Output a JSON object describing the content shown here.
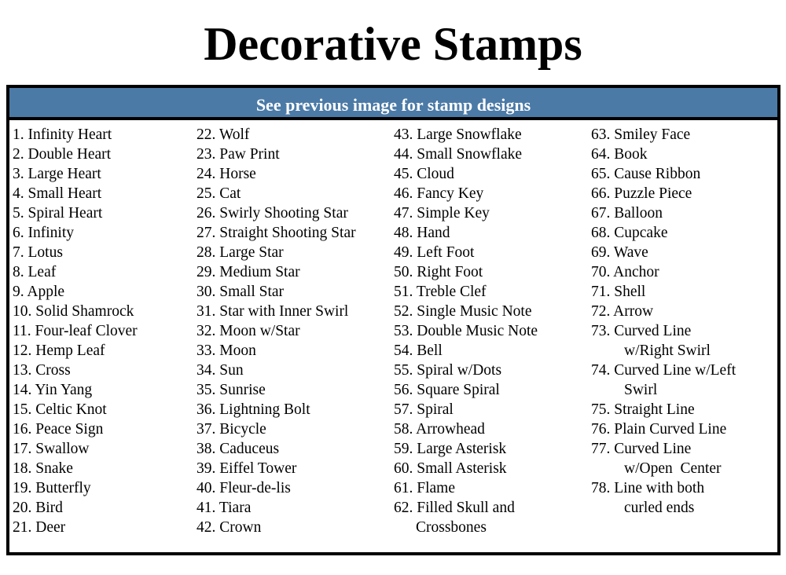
{
  "title": "Decorative Stamps",
  "header": "See previous image for stamp designs",
  "columns": [
    [
      [
        "1. Infinity Heart"
      ],
      [
        "2. Double Heart"
      ],
      [
        "3. Large Heart"
      ],
      [
        "4. Small Heart"
      ],
      [
        "5. Spiral Heart"
      ],
      [
        "6. Infinity"
      ],
      [
        "7. Lotus"
      ],
      [
        "8. Leaf"
      ],
      [
        "9. Apple"
      ],
      [
        "10. Solid Shamrock"
      ],
      [
        "11. Four-leaf Clover"
      ],
      [
        "12. Hemp Leaf"
      ],
      [
        "13. Cross"
      ],
      [
        "14. Yin Yang"
      ],
      [
        "15. Celtic Knot"
      ],
      [
        "16. Peace Sign"
      ],
      [
        "17. Swallow"
      ],
      [
        "18. Snake"
      ],
      [
        "19. Butterfly"
      ],
      [
        "20. Bird"
      ],
      [
        "21. Deer"
      ]
    ],
    [
      [
        "22. Wolf"
      ],
      [
        "23. Paw Print"
      ],
      [
        "24. Horse"
      ],
      [
        "25. Cat"
      ],
      [
        "26. Swirly Shooting Star"
      ],
      [
        "27. Straight Shooting Star"
      ],
      [
        "28. Large Star"
      ],
      [
        "29. Medium Star"
      ],
      [
        "30. Small Star"
      ],
      [
        "31. Star with Inner Swirl"
      ],
      [
        "32. Moon w/Star"
      ],
      [
        "33. Moon"
      ],
      [
        "34. Sun"
      ],
      [
        "35. Sunrise"
      ],
      [
        "36. Lightning Bolt"
      ],
      [
        "37. Bicycle"
      ],
      [
        "38. Caduceus"
      ],
      [
        "39. Eiffel Tower"
      ],
      [
        "40. Fleur-de-lis"
      ],
      [
        "41. Tiara"
      ],
      [
        "42. Crown"
      ]
    ],
    [
      [
        "43. Large Snowflake"
      ],
      [
        "44. Small Snowflake"
      ],
      [
        "45. Cloud"
      ],
      [
        "46. Fancy Key"
      ],
      [
        "47. Simple Key"
      ],
      [
        "48. Hand"
      ],
      [
        "49. Left Foot"
      ],
      [
        "50. Right Foot"
      ],
      [
        "51. Treble Clef"
      ],
      [
        "52. Single Music Note"
      ],
      [
        "53. Double Music Note"
      ],
      [
        "54. Bell"
      ],
      [
        "55. Spiral w/Dots"
      ],
      [
        "56. Square Spiral"
      ],
      [
        "57. Spiral"
      ],
      [
        "58. Arrowhead"
      ],
      [
        "59. Large Asterisk"
      ],
      [
        "60. Small Asterisk"
      ],
      [
        "61. Flame"
      ],
      [
        "62. Filled Skull and",
        "Crossbones"
      ]
    ],
    [
      [
        "63. Smiley Face"
      ],
      [
        "64. Book"
      ],
      [
        "65. Cause Ribbon"
      ],
      [
        "66. Puzzle Piece"
      ],
      [
        "67. Balloon"
      ],
      [
        "68. Cupcake"
      ],
      [
        "69. Wave"
      ],
      [
        "70. Anchor"
      ],
      [
        "71. Shell"
      ],
      [
        "72. Arrow"
      ],
      [
        "73. Curved Line",
        "w/Right Swirl"
      ],
      [
        "74. Curved Line w/Left",
        "Swirl"
      ],
      [
        "75. Straight Line"
      ],
      [
        "76. Plain Curved Line"
      ],
      [
        "77. Curved Line",
        "w/Open  Center"
      ],
      [
        "78. Line with both",
        "curled ends"
      ]
    ]
  ]
}
